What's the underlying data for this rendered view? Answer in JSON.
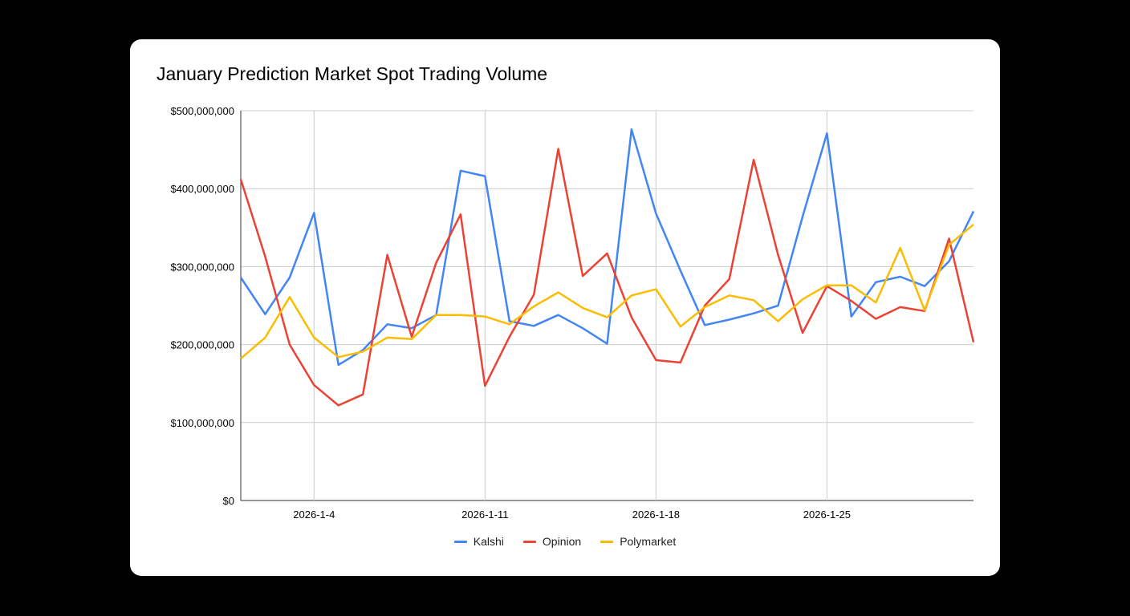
{
  "chart_data": {
    "type": "line",
    "title": "January Prediction Market Spot Trading Volume",
    "xlabel": "",
    "ylabel": "",
    "x": [
      "2026-1-1",
      "2026-1-2",
      "2026-1-3",
      "2026-1-4",
      "2026-1-5",
      "2026-1-6",
      "2026-1-7",
      "2026-1-8",
      "2026-1-9",
      "2026-1-10",
      "2026-1-11",
      "2026-1-12",
      "2026-1-13",
      "2026-1-14",
      "2026-1-15",
      "2026-1-16",
      "2026-1-17",
      "2026-1-18",
      "2026-1-19",
      "2026-1-20",
      "2026-1-21",
      "2026-1-22",
      "2026-1-23",
      "2026-1-24",
      "2026-1-25",
      "2026-1-26",
      "2026-1-27",
      "2026-1-28",
      "2026-1-29",
      "2026-1-30",
      "2026-1-31"
    ],
    "x_tick_labels": [
      "2026-1-4",
      "2026-1-11",
      "2026-1-18",
      "2026-1-25"
    ],
    "y_tick_labels": [
      "$0",
      "$100,000,000",
      "$200,000,000",
      "$300,000,000",
      "$400,000,000",
      "$500,000,000"
    ],
    "ylim": [
      0,
      500000000
    ],
    "grid": true,
    "legend_position": "bottom",
    "series": [
      {
        "name": "Kalshi",
        "color": "#4285f4",
        "values": [
          286000000,
          239000000,
          286000000,
          369000000,
          174000000,
          193000000,
          226000000,
          221000000,
          238000000,
          423000000,
          416000000,
          230000000,
          224000000,
          238000000,
          221000000,
          201000000,
          476000000,
          368000000,
          295000000,
          225000000,
          232000000,
          240000000,
          250000000,
          364000000,
          471000000,
          236000000,
          280000000,
          287000000,
          275000000,
          307000000,
          371000000
        ]
      },
      {
        "name": "Opinion",
        "color": "#ea4335",
        "values": [
          412000000,
          313000000,
          200000000,
          148000000,
          122000000,
          136000000,
          315000000,
          210000000,
          305000000,
          367000000,
          147000000,
          210000000,
          264000000,
          451000000,
          288000000,
          317000000,
          235000000,
          180000000,
          177000000,
          250000000,
          284000000,
          437000000,
          315000000,
          215000000,
          275000000,
          256000000,
          233000000,
          248000000,
          243000000,
          336000000,
          203000000
        ]
      },
      {
        "name": "Polymarket",
        "color": "#fbbc04",
        "values": [
          182000000,
          209000000,
          261000000,
          209000000,
          184000000,
          191000000,
          209000000,
          207000000,
          238000000,
          238000000,
          236000000,
          226000000,
          249000000,
          267000000,
          247000000,
          235000000,
          263000000,
          271000000,
          223000000,
          248000000,
          263000000,
          257000000,
          230000000,
          258000000,
          276000000,
          276000000,
          254000000,
          324000000,
          244000000,
          328000000,
          354000000
        ]
      }
    ]
  }
}
